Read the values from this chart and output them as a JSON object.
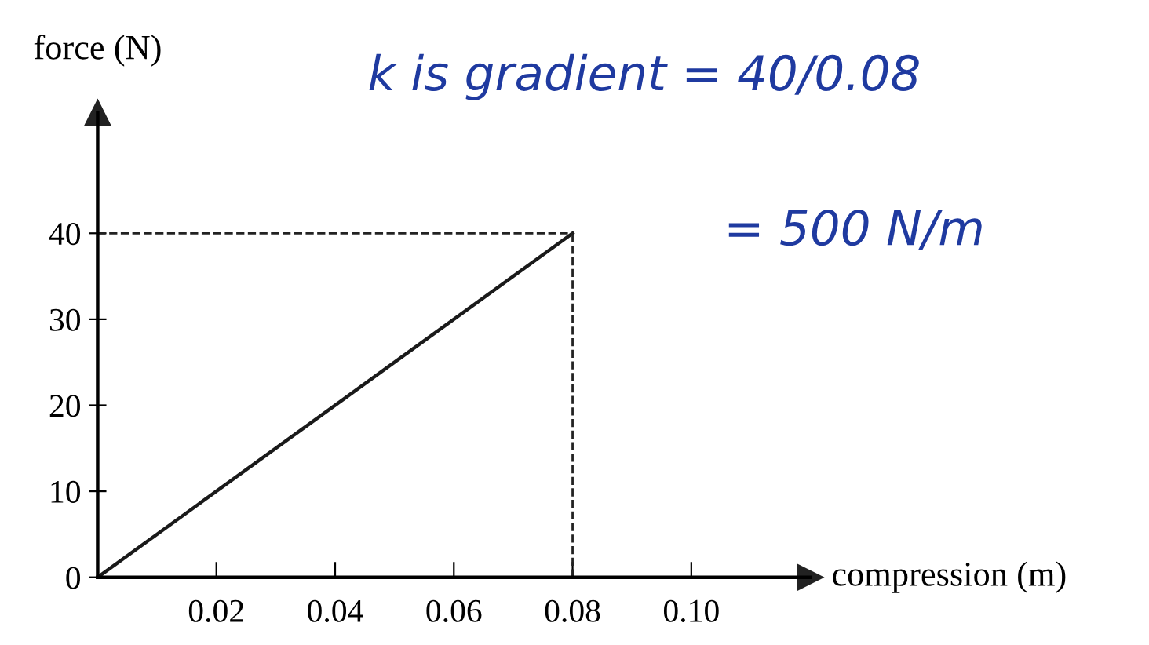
{
  "chart_data": {
    "type": "line",
    "xlabel": "compression (m)",
    "ylabel": "force (N)",
    "x": [
      0,
      0.08
    ],
    "series": [
      {
        "color": "#1a1a1a",
        "values": [
          0,
          40
        ]
      }
    ],
    "xlim": [
      0,
      0.12
    ],
    "ylim": [
      0,
      54
    ],
    "xticks": [
      0.02,
      0.04,
      0.06,
      0.08,
      {
        "value": 0.1,
        "label": "0.10"
      }
    ],
    "yticks": [
      0,
      10,
      20,
      30,
      40
    ],
    "ref_lines": [
      {
        "axis": "y",
        "value": 40,
        "line_style": "dashed"
      },
      {
        "axis": "x",
        "value": 0.08,
        "line_style": "dashed"
      }
    ],
    "grid": false,
    "legend": false,
    "marker": "none",
    "line_style": "solid",
    "annotations": [
      "k is gradient = 40/0.08",
      "= 500 N/m"
    ]
  }
}
